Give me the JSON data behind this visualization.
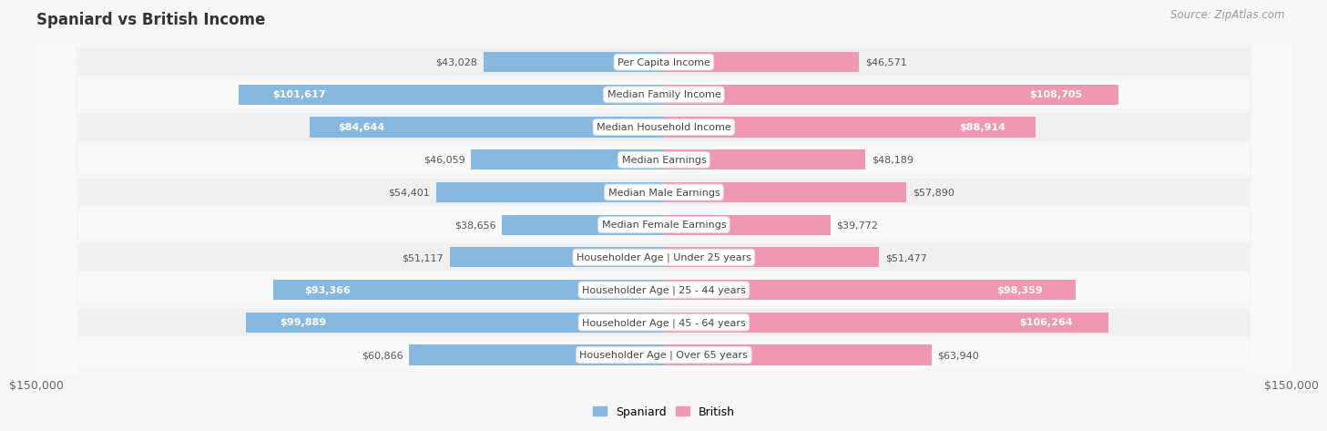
{
  "title": "Spaniard vs British Income",
  "source": "Source: ZipAtlas.com",
  "categories": [
    "Per Capita Income",
    "Median Family Income",
    "Median Household Income",
    "Median Earnings",
    "Median Male Earnings",
    "Median Female Earnings",
    "Householder Age | Under 25 years",
    "Householder Age | 25 - 44 years",
    "Householder Age | 45 - 64 years",
    "Householder Age | Over 65 years"
  ],
  "spaniard_values": [
    43028,
    101617,
    84644,
    46059,
    54401,
    38656,
    51117,
    93366,
    99889,
    60866
  ],
  "british_values": [
    46571,
    108705,
    88914,
    48189,
    57890,
    39772,
    51477,
    98359,
    106264,
    63940
  ],
  "spaniard_labels": [
    "$43,028",
    "$101,617",
    "$84,644",
    "$46,059",
    "$54,401",
    "$38,656",
    "$51,117",
    "$93,366",
    "$99,889",
    "$60,866"
  ],
  "british_labels": [
    "$46,571",
    "$108,705",
    "$88,914",
    "$48,189",
    "$57,890",
    "$39,772",
    "$51,477",
    "$98,359",
    "$106,264",
    "$63,940"
  ],
  "spaniard_color": "#86b8e0",
  "british_color": "#f097b2",
  "spaniard_dark_color": "#4a8dc0",
  "british_dark_color": "#e8547a",
  "max_value": 150000,
  "x_label_left": "$150,000",
  "x_label_right": "$150,000",
  "bar_height": 0.62,
  "label_threshold": 70000,
  "title_fontsize": 12,
  "source_fontsize": 8.5,
  "tick_fontsize": 9,
  "bar_label_fontsize": 8,
  "category_fontsize": 8,
  "legend_fontsize": 9,
  "fig_bg": "#f7f7f7",
  "row_even_bg": "#f0f0f0",
  "row_odd_bg": "#fafafa"
}
